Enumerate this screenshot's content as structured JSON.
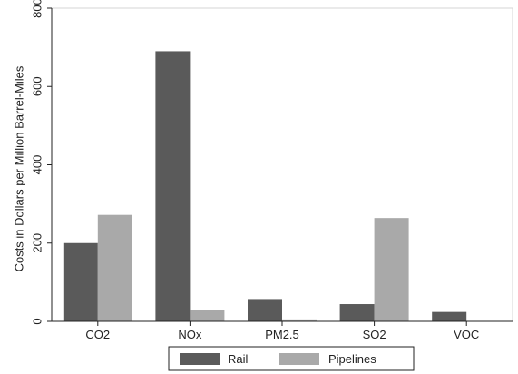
{
  "chart_data": {
    "type": "bar",
    "title": "",
    "xlabel": "",
    "ylabel": "Costs in Dollars per Million Barrel-Miles",
    "categories": [
      "CO2",
      "NOx",
      "PM2.5",
      "SO2",
      "VOC"
    ],
    "series": [
      {
        "name": "Rail",
        "color": "#5a5a5a",
        "values": [
          200,
          690,
          57,
          44,
          24
        ]
      },
      {
        "name": "Pipelines",
        "color": "#a9a9a9",
        "values": [
          272,
          28,
          5,
          264,
          0
        ]
      }
    ],
    "ylim": [
      0,
      800
    ],
    "yticks": [
      0,
      200,
      400,
      600,
      800
    ],
    "grid": false,
    "legend_position": "bottom-center"
  }
}
